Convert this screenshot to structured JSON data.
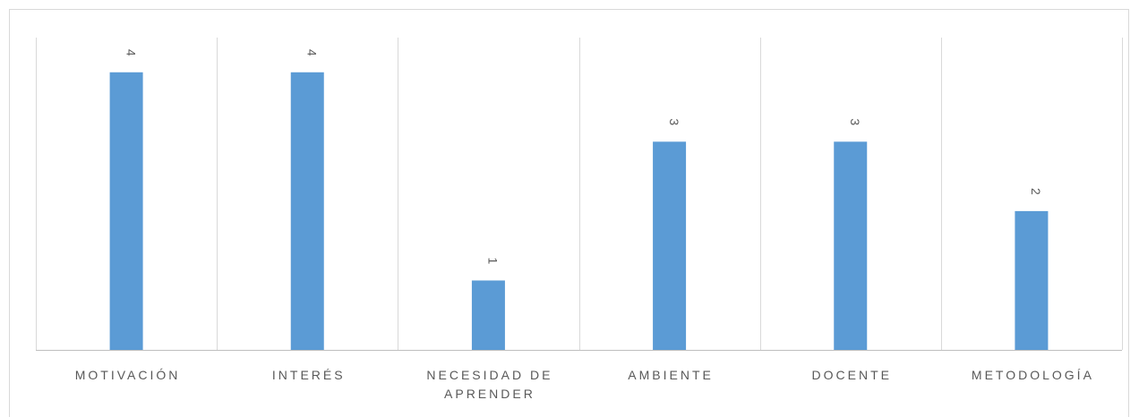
{
  "chart_data": {
    "type": "bar",
    "categories": [
      "MOTIVACIÓN",
      "INTERÉS",
      "NECESIDAD DE APRENDER",
      "AMBIENTE",
      "DOCENTE",
      "METODOLOGÍA"
    ],
    "values": [
      4,
      4,
      1,
      3,
      3,
      2
    ],
    "category_label_lines": [
      [
        "MOTIVACIÓN"
      ],
      [
        "INTERÉS"
      ],
      [
        "NECESIDAD DE",
        "APRENDER"
      ],
      [
        "AMBIENTE"
      ],
      [
        "DOCENTE"
      ],
      [
        "METODOLOGÍA"
      ]
    ],
    "data_labels": [
      "4",
      "4",
      "1",
      "3",
      "3",
      "2"
    ],
    "ylim": [
      0,
      4.5
    ],
    "grid": "vertical category separators",
    "legend": "none",
    "data_label_rotation": "vertical",
    "colors": {
      "bar": "#5b9bd5",
      "grid": "#d9d9d9",
      "axis": "#bfbfbf",
      "text": "#595959"
    }
  }
}
